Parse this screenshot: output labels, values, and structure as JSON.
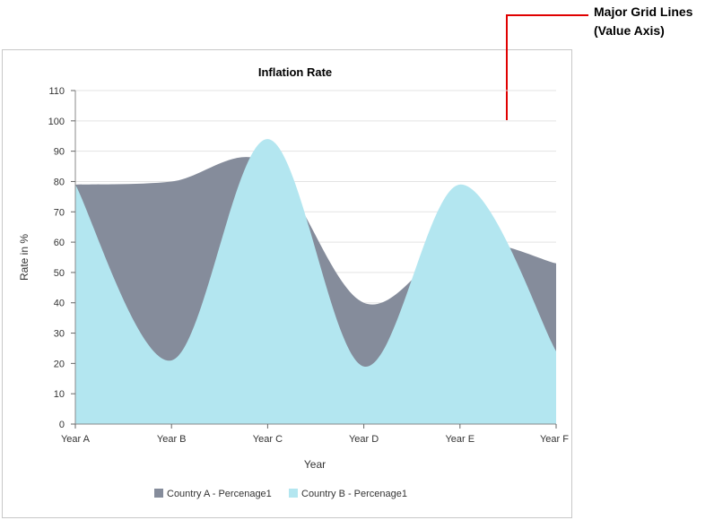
{
  "annotation": {
    "line1": "Major Grid Lines",
    "line2": "(Value Axis)",
    "color": "#e00000"
  },
  "chart_data": {
    "type": "area",
    "title": "Inflation Rate",
    "xlabel": "Year",
    "ylabel": "Rate in %",
    "categories": [
      "Year A",
      "Year B",
      "Year C",
      "Year D",
      "Year E",
      "Year F"
    ],
    "ylim": [
      0,
      110
    ],
    "yticks": [
      0,
      10,
      20,
      30,
      40,
      50,
      60,
      70,
      80,
      90,
      100,
      110
    ],
    "grid": true,
    "legend_position": "bottom",
    "smooth": true,
    "series": [
      {
        "name": "Country A - Percenage1",
        "color": "#858c9b",
        "values": [
          79,
          80,
          86,
          40,
          60,
          53
        ]
      },
      {
        "name": "Country B - Percenage1",
        "color": "#b3e6f0",
        "values": [
          79,
          21,
          94,
          19,
          79,
          24
        ]
      }
    ]
  }
}
